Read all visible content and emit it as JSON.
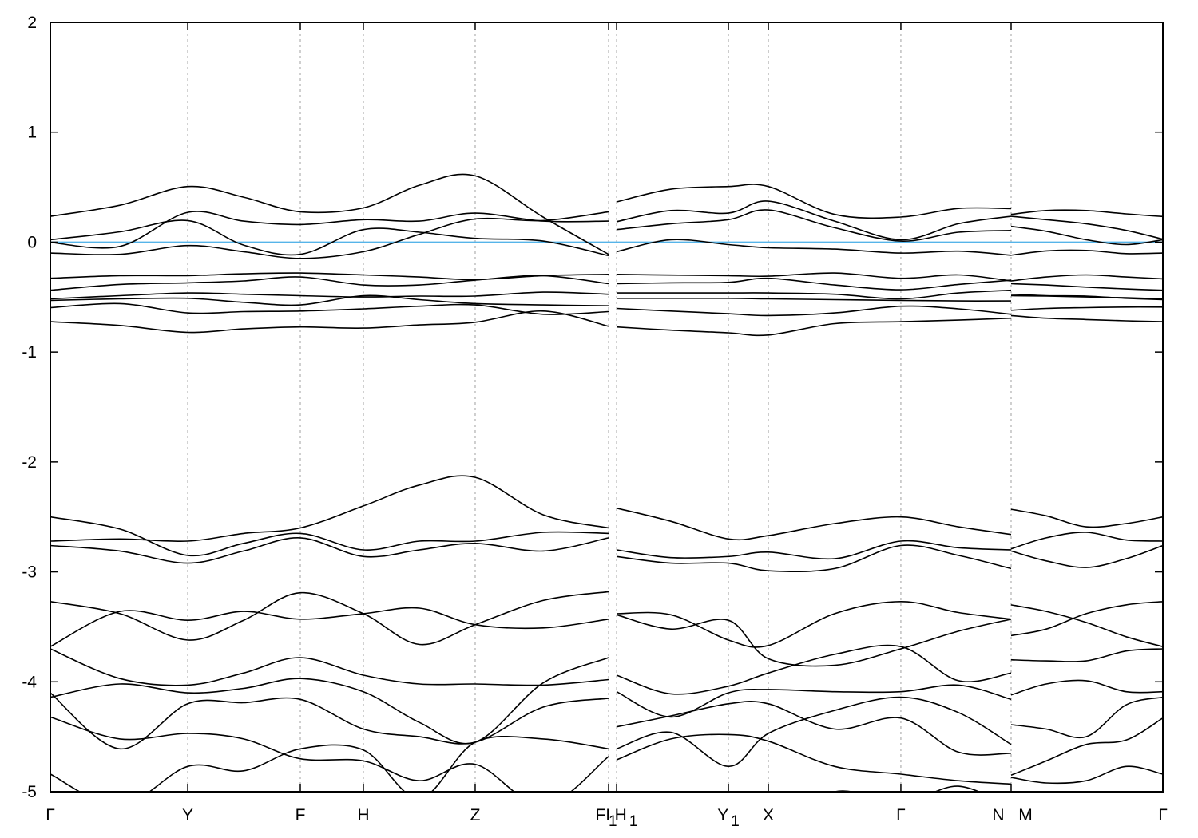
{
  "chart_data": {
    "type": "line",
    "title": "",
    "xlabel": "",
    "ylabel": "",
    "ylim": [
      -5,
      2
    ],
    "xlim": [
      0,
      1
    ],
    "grid": "vertical dashed lines at high-symmetry points",
    "line_color": "#000000",
    "fermi_level": 0,
    "fermi_color": "#56b4e9",
    "yticks": [
      {
        "value": -5,
        "label": "-5"
      },
      {
        "value": -4,
        "label": "-4"
      },
      {
        "value": -3,
        "label": "-3"
      },
      {
        "value": -2,
        "label": "-2"
      },
      {
        "value": -1,
        "label": "-1"
      },
      {
        "value": 0,
        "label": "0"
      },
      {
        "value": 1,
        "label": "1"
      },
      {
        "value": 2,
        "label": "2"
      }
    ],
    "kpoints": [
      {
        "label": "Γ",
        "sub": "",
        "k": 0
      },
      {
        "label": "Y",
        "sub": "",
        "k": 0.1235
      },
      {
        "label": "F",
        "sub": "",
        "k": 0.2247
      },
      {
        "label": "H",
        "sub": "",
        "k": 0.2814
      },
      {
        "label": "Z",
        "sub": "",
        "k": 0.3819
      },
      {
        "label": "FI",
        "sub": "1",
        "k": 0.5018
      },
      {
        "label": "H",
        "sub": "1",
        "k": 0.509
      },
      {
        "label": "Y",
        "sub": "1",
        "k": 0.6095
      },
      {
        "label": "X",
        "sub": "",
        "k": 0.6454
      },
      {
        "label": "Γ",
        "sub": "",
        "k": 0.7645
      },
      {
        "label": "N",
        "sub": "",
        "k": 0.8636
      },
      {
        "label": "M",
        "sub": "",
        "k": 0.8636
      },
      {
        "label": "Γ",
        "sub": "",
        "k": 1.0
      }
    ],
    "segments": [
      {
        "k": [
          0,
          0.0625,
          0.1235,
          0.1737,
          0.2247,
          0.2814,
          0.3317,
          0.3819,
          0.4429,
          0.5018
        ],
        "bands": [
          [
            0.235,
            0.336,
            0.506,
            0.409,
            0.276,
            0.312,
            0.518,
            0.603,
            0.228,
            -0.111
          ],
          [
            -0.002,
            -0.039,
            0.271,
            0.191,
            0.16,
            0.204,
            0.191,
            0.264,
            0.191,
            0.191
          ],
          [
            0.022,
            0.094,
            0.196,
            -0.027,
            -0.111,
            0.114,
            0.09,
            0.034,
            0.01,
            -0.123
          ],
          [
            -0.099,
            -0.111,
            -0.031,
            -0.087,
            -0.148,
            -0.087,
            0.071,
            0.211,
            0.196,
            0.276
          ],
          [
            -0.329,
            -0.305,
            -0.305,
            -0.288,
            -0.281,
            -0.298,
            -0.317,
            -0.341,
            -0.305,
            -0.293
          ],
          [
            -0.438,
            -0.385,
            -0.37,
            -0.353,
            -0.317,
            -0.39,
            -0.39,
            -0.346,
            -0.305,
            -0.378
          ],
          [
            -0.516,
            -0.487,
            -0.462,
            -0.474,
            -0.487,
            -0.499,
            -0.491,
            -0.491,
            -0.455,
            -0.474
          ],
          [
            -0.53,
            -0.516,
            -0.511,
            -0.547,
            -0.571,
            -0.487,
            -0.523,
            -0.559,
            -0.571,
            -0.579
          ],
          [
            -0.596,
            -0.559,
            -0.644,
            -0.632,
            -0.627,
            -0.607,
            -0.583,
            -0.571,
            -0.656,
            -0.632
          ],
          [
            -0.724,
            -0.758,
            -0.821,
            -0.789,
            -0.772,
            -0.782,
            -0.753,
            -0.729,
            -0.627,
            -0.765
          ],
          [
            -2.72,
            -2.7,
            -2.72,
            -2.65,
            -2.6,
            -2.4,
            -2.21,
            -2.14,
            -2.48,
            -2.6
          ],
          [
            -2.5,
            -2.61,
            -2.85,
            -2.74,
            -2.65,
            -2.8,
            -2.72,
            -2.72,
            -2.64,
            -2.65
          ],
          [
            -2.76,
            -2.81,
            -2.92,
            -2.81,
            -2.69,
            -2.86,
            -2.8,
            -2.74,
            -2.81,
            -2.69
          ],
          [
            -3.27,
            -3.38,
            -3.62,
            -3.44,
            -3.19,
            -3.38,
            -3.66,
            -3.48,
            -3.26,
            -3.18
          ],
          [
            -3.68,
            -3.36,
            -3.44,
            -3.36,
            -3.43,
            -3.38,
            -3.33,
            -3.48,
            -3.51,
            -3.43
          ],
          [
            -3.7,
            -3.97,
            -4.03,
            -3.92,
            -3.78,
            -3.94,
            -4.02,
            -4.02,
            -4.03,
            -3.98
          ],
          [
            -4.14,
            -4.02,
            -4.1,
            -4.06,
            -3.97,
            -4.09,
            -4.37,
            -4.55,
            -4.01,
            -3.78
          ],
          [
            -4.1,
            -4.61,
            -4.2,
            -4.19,
            -4.16,
            -4.43,
            -4.5,
            -4.55,
            -4.23,
            -4.15
          ],
          [
            -4.32,
            -4.52,
            -4.47,
            -4.52,
            -4.7,
            -4.72,
            -4.9,
            -4.75,
            -5.13,
            -4.68
          ],
          [
            -4.84,
            -5.13,
            -4.77,
            -4.81,
            -4.61,
            -4.62,
            -5.06,
            -4.55,
            -4.52,
            -4.61
          ]
        ]
      },
      {
        "k": [
          0.509,
          0.5578,
          0.6095,
          0.6454,
          0.705,
          0.7645,
          0.8162,
          0.8636
        ],
        "bands": [
          [
            0.366,
            0.482,
            0.506,
            0.506,
            0.252,
            0.228,
            0.307,
            0.305
          ],
          [
            0.186,
            0.288,
            0.264,
            0.373,
            0.191,
            0.022,
            0.167,
            0.235
          ],
          [
            0.114,
            0.167,
            0.204,
            0.293,
            0.131,
            0.01,
            0.09,
            0.106
          ],
          [
            -0.087,
            0.022,
            -0.022,
            -0.051,
            -0.063,
            -0.099,
            -0.082,
            -0.119
          ],
          [
            -0.293,
            -0.3,
            -0.305,
            -0.31,
            -0.281,
            -0.329,
            -0.298,
            -0.353
          ],
          [
            -0.378,
            -0.37,
            -0.366,
            -0.329,
            -0.39,
            -0.433,
            -0.385,
            -0.346
          ],
          [
            -0.462,
            -0.462,
            -0.462,
            -0.462,
            -0.474,
            -0.516,
            -0.462,
            -0.438
          ],
          [
            -0.511,
            -0.511,
            -0.511,
            -0.516,
            -0.523,
            -0.53,
            -0.535,
            -0.535
          ],
          [
            -0.603,
            -0.627,
            -0.651,
            -0.668,
            -0.644,
            -0.583,
            -0.607,
            -0.656
          ],
          [
            -0.772,
            -0.801,
            -0.825,
            -0.845,
            -0.741,
            -0.724,
            -0.709,
            -0.692
          ],
          [
            -2.42,
            -2.54,
            -2.7,
            -2.67,
            -2.56,
            -2.5,
            -2.59,
            -2.66
          ],
          [
            -2.8,
            -2.87,
            -2.86,
            -2.82,
            -2.88,
            -2.72,
            -2.78,
            -2.8
          ],
          [
            -2.86,
            -2.92,
            -2.92,
            -2.99,
            -2.97,
            -2.76,
            -2.85,
            -2.97
          ],
          [
            -3.38,
            -3.39,
            -3.62,
            -3.67,
            -3.38,
            -3.27,
            -3.37,
            -3.43
          ],
          [
            -3.39,
            -3.52,
            -3.44,
            -3.79,
            -3.85,
            -3.7,
            -3.54,
            -3.43
          ],
          [
            -3.94,
            -4.11,
            -4.04,
            -3.92,
            -3.75,
            -3.68,
            -3.99,
            -3.92
          ],
          [
            -4.09,
            -4.32,
            -4.1,
            -4.07,
            -4.09,
            -4.09,
            -4.03,
            -4.16
          ],
          [
            -4.41,
            -4.31,
            -4.2,
            -4.2,
            -4.43,
            -4.33,
            -4.64,
            -4.65
          ],
          [
            -4.61,
            -4.46,
            -4.77,
            -4.47,
            -4.26,
            -4.14,
            -4.28,
            -4.57
          ],
          [
            -4.71,
            -4.52,
            -4.48,
            -4.54,
            -4.77,
            -4.84,
            -4.9,
            -4.93
          ],
          [
            -5.4,
            -5.5,
            -5.55,
            -5.35,
            -5.0,
            -5.1,
            -4.95,
            -5.15
          ]
        ]
      },
      {
        "k": [
          0.8636,
          0.8952,
          0.9311,
          0.967,
          1.0
        ],
        "bands": [
          [
            0.252,
            0.288,
            0.288,
            0.257,
            0.233
          ],
          [
            0.235,
            0.204,
            0.167,
            0.107,
            0.027
          ],
          [
            0.143,
            0.099,
            0.022,
            -0.022,
            0.022
          ],
          [
            -0.119,
            -0.08,
            -0.075,
            -0.104,
            -0.099
          ],
          [
            -0.353,
            -0.317,
            -0.298,
            -0.317,
            -0.334
          ],
          [
            -0.378,
            -0.39,
            -0.409,
            -0.426,
            -0.438
          ],
          [
            -0.474,
            -0.487,
            -0.491,
            -0.511,
            -0.523
          ],
          [
            -0.487,
            -0.491,
            -0.499,
            -0.506,
            -0.516
          ],
          [
            -0.62,
            -0.603,
            -0.596,
            -0.591,
            -0.591
          ],
          [
            -0.668,
            -0.692,
            -0.704,
            -0.716,
            -0.724
          ],
          [
            -2.43,
            -2.49,
            -2.59,
            -2.56,
            -2.5
          ],
          [
            -2.79,
            -2.69,
            -2.64,
            -2.71,
            -2.72
          ],
          [
            -2.81,
            -2.9,
            -2.96,
            -2.88,
            -2.76
          ],
          [
            -3.3,
            -3.36,
            -3.46,
            -3.59,
            -3.68
          ],
          [
            -3.58,
            -3.52,
            -3.38,
            -3.3,
            -3.27
          ],
          [
            -3.8,
            -3.81,
            -3.81,
            -3.72,
            -3.7
          ],
          [
            -4.12,
            -4.02,
            -3.99,
            -4.09,
            -4.09
          ],
          [
            -4.39,
            -4.43,
            -4.5,
            -4.21,
            -4.14
          ],
          [
            -4.85,
            -4.72,
            -4.57,
            -4.53,
            -4.33
          ],
          [
            -4.87,
            -4.92,
            -4.9,
            -4.77,
            -4.84
          ]
        ]
      }
    ]
  }
}
